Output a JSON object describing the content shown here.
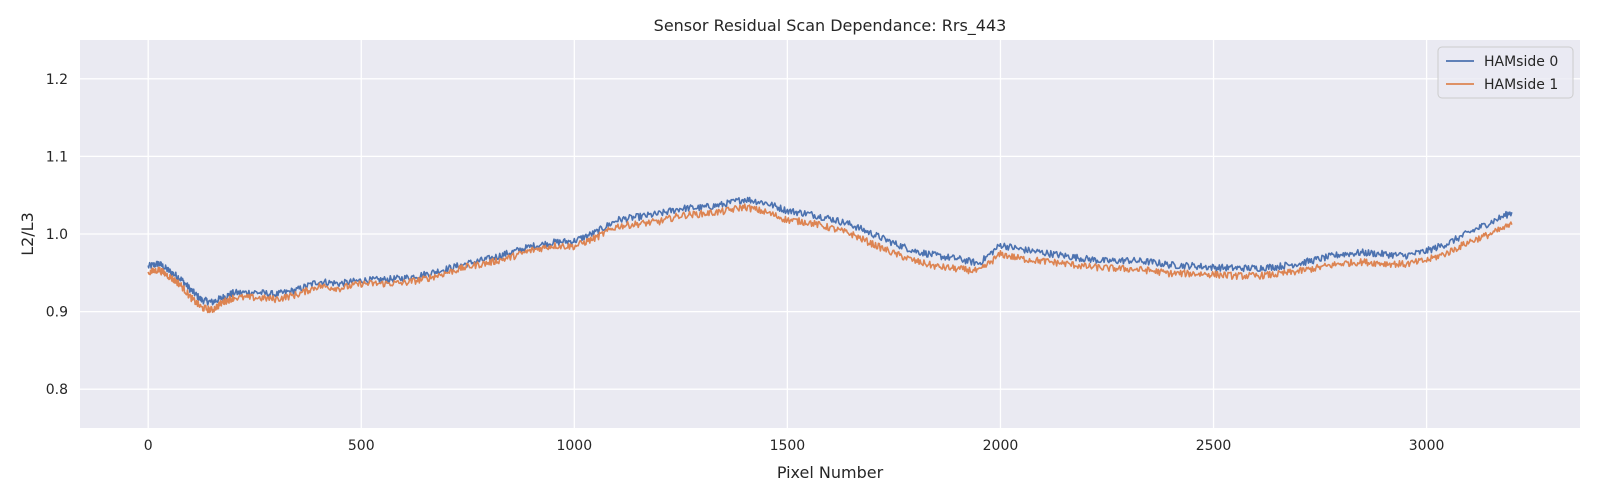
{
  "chart_data": {
    "type": "line",
    "title": "Sensor Residual Scan Dependance: Rrs_443",
    "xlabel": "Pixel Number",
    "ylabel": "L2/L3",
    "xlim": [
      -160,
      3360
    ],
    "ylim": [
      0.75,
      1.25
    ],
    "xticks": [
      0,
      500,
      1000,
      1500,
      2000,
      2500,
      3000
    ],
    "xtick_labels": [
      "0",
      "500",
      "1000",
      "1500",
      "2000",
      "2500",
      "3000"
    ],
    "yticks": [
      0.8,
      0.9,
      1.0,
      1.1,
      1.2
    ],
    "ytick_labels": [
      "0.8",
      "0.9",
      "1.0",
      "1.1",
      "1.2"
    ],
    "grid": true,
    "legend_position": "top-right",
    "background": "#eaeaf2",
    "series": [
      {
        "name": "HAMside 0",
        "color": "#4c72b0",
        "x": [
          0,
          25,
          50,
          75,
          100,
          125,
          150,
          175,
          200,
          250,
          300,
          350,
          400,
          450,
          500,
          550,
          600,
          650,
          700,
          750,
          800,
          850,
          900,
          950,
          1000,
          1050,
          1100,
          1150,
          1200,
          1250,
          1300,
          1350,
          1400,
          1450,
          1500,
          1550,
          1600,
          1650,
          1700,
          1750,
          1800,
          1850,
          1900,
          1950,
          2000,
          2050,
          2100,
          2150,
          2200,
          2250,
          2300,
          2350,
          2400,
          2450,
          2500,
          2550,
          2600,
          2650,
          2700,
          2750,
          2800,
          2850,
          2900,
          2950,
          3000,
          3050,
          3100,
          3150,
          3200
        ],
        "y": [
          0.958,
          0.962,
          0.952,
          0.943,
          0.928,
          0.915,
          0.912,
          0.918,
          0.924,
          0.925,
          0.922,
          0.928,
          0.939,
          0.936,
          0.94,
          0.941,
          0.943,
          0.948,
          0.955,
          0.962,
          0.968,
          0.976,
          0.984,
          0.989,
          0.991,
          1.002,
          1.018,
          1.022,
          1.026,
          1.033,
          1.034,
          1.038,
          1.045,
          1.04,
          1.03,
          1.026,
          1.02,
          1.012,
          1.0,
          0.988,
          0.978,
          0.972,
          0.968,
          0.962,
          0.986,
          0.98,
          0.976,
          0.972,
          0.968,
          0.965,
          0.966,
          0.964,
          0.96,
          0.959,
          0.957,
          0.956,
          0.956,
          0.958,
          0.962,
          0.968,
          0.974,
          0.976,
          0.974,
          0.972,
          0.978,
          0.988,
          1.002,
          1.015,
          1.028
        ]
      },
      {
        "name": "HAMside 1",
        "color": "#dd8452",
        "x": [
          0,
          25,
          50,
          75,
          100,
          125,
          150,
          175,
          200,
          250,
          300,
          350,
          400,
          450,
          500,
          550,
          600,
          650,
          700,
          750,
          800,
          850,
          900,
          950,
          1000,
          1050,
          1100,
          1150,
          1200,
          1250,
          1300,
          1350,
          1400,
          1450,
          1500,
          1550,
          1600,
          1650,
          1700,
          1750,
          1800,
          1850,
          1900,
          1950,
          2000,
          2050,
          2100,
          2150,
          2200,
          2250,
          2300,
          2350,
          2400,
          2450,
          2500,
          2550,
          2600,
          2650,
          2700,
          2750,
          2800,
          2850,
          2900,
          2950,
          3000,
          3050,
          3100,
          3150,
          3200
        ],
        "y": [
          0.95,
          0.954,
          0.945,
          0.935,
          0.918,
          0.905,
          0.902,
          0.912,
          0.918,
          0.918,
          0.916,
          0.922,
          0.933,
          0.93,
          0.936,
          0.936,
          0.937,
          0.942,
          0.95,
          0.958,
          0.963,
          0.97,
          0.979,
          0.985,
          0.984,
          0.995,
          1.01,
          1.013,
          1.016,
          1.024,
          1.026,
          1.029,
          1.035,
          1.028,
          1.018,
          1.015,
          1.008,
          1.0,
          0.987,
          0.975,
          0.965,
          0.958,
          0.955,
          0.952,
          0.974,
          0.968,
          0.965,
          0.962,
          0.958,
          0.956,
          0.955,
          0.953,
          0.949,
          0.949,
          0.948,
          0.946,
          0.946,
          0.948,
          0.952,
          0.957,
          0.962,
          0.964,
          0.962,
          0.961,
          0.966,
          0.976,
          0.99,
          1.0,
          1.012
        ]
      }
    ]
  }
}
